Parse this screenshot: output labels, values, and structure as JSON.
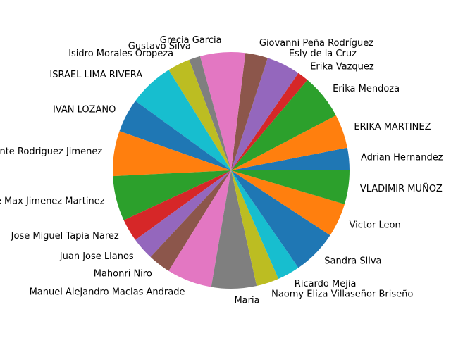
{
  "chart_data": {
    "type": "pie",
    "title": "",
    "start_angle_deg": 0,
    "direction": "counterclockwise",
    "labels": [
      "Adrian Hernandez",
      "ERIKA MARTINEZ",
      "Erika Mendoza",
      "Erika Vazquez",
      "Esly de la Cruz",
      "Giovanni Peña Rodríguez",
      "Grecia Garcia",
      "Gustavo Silva",
      "Isidro Morales Oropeza",
      "ISRAEL LIMA RIVERA",
      "IVAN LOZANO",
      "Jose Abelardo Fuente Rodriguez Jimenez",
      "Jose Max Jimenez Martinez",
      "Jose Miguel Tapia Narez",
      "Juan Jose Llanos",
      "Mahonri Niro",
      "Manuel Alejandro Macias Andrade",
      "Maria",
      "Naomy Eliza Villaseñor Briseño",
      "Ricardo Mejia",
      "Sandra Silva",
      "Victor Leon",
      "VLADIMIR MUÑOZ"
    ],
    "values": [
      2,
      3,
      4,
      1,
      3,
      2,
      4,
      1,
      2,
      4,
      3,
      4,
      4,
      2,
      2,
      2,
      4,
      4,
      2,
      2,
      4,
      3,
      3
    ],
    "colors": [
      "#1f77b4",
      "#ff7f0e",
      "#2ca02c",
      "#d62728",
      "#9467bd",
      "#8c564b",
      "#e377c2",
      "#7f7f7f",
      "#bcbd22",
      "#17becf"
    ]
  }
}
